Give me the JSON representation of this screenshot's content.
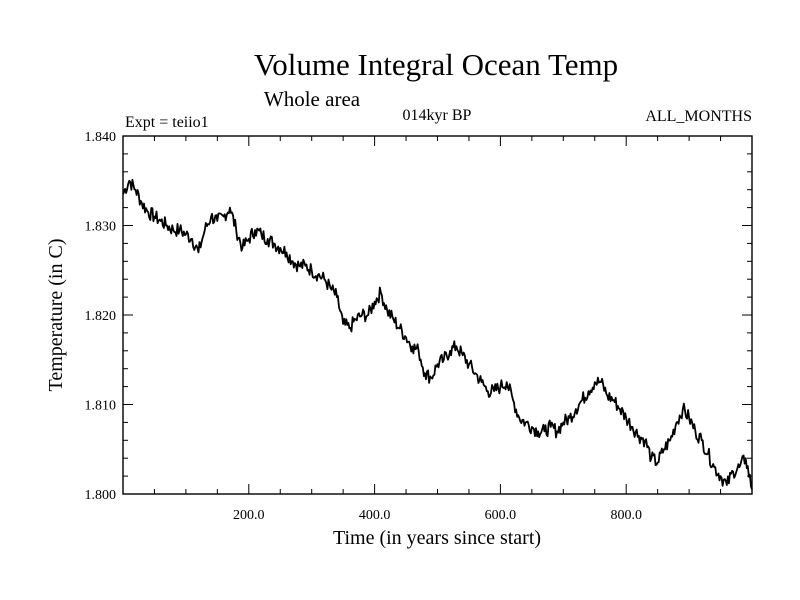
{
  "chart_data": {
    "type": "line",
    "title": "Volume Integral Ocean Temp",
    "subtitle": "Whole area",
    "annotations": {
      "left": "Expt = teiio1",
      "center": "014kyr BP",
      "right": "ALL_MONTHS"
    },
    "xlabel": "Time (in years since start)",
    "ylabel": "Temperature (in C)",
    "xlim": [
      0,
      1000
    ],
    "ylim": [
      1.8,
      1.84
    ],
    "x_ticks": [
      200,
      400,
      600,
      800
    ],
    "x_tick_labels": [
      "200.0",
      "400.0",
      "600.0",
      "800.0"
    ],
    "y_ticks": [
      1.8,
      1.81,
      1.82,
      1.83,
      1.84
    ],
    "y_tick_labels": [
      "1.800",
      "1.810",
      "1.820",
      "1.830",
      "1.840"
    ],
    "grid": false,
    "series": [
      {
        "color": "#000000",
        "x": [
          0,
          10,
          20,
          30,
          40,
          50,
          60,
          70,
          80,
          90,
          100,
          110,
          120,
          130,
          140,
          150,
          160,
          170,
          180,
          190,
          200,
          210,
          220,
          230,
          240,
          250,
          260,
          270,
          280,
          290,
          300,
          310,
          320,
          330,
          340,
          350,
          360,
          370,
          380,
          390,
          400,
          410,
          420,
          430,
          440,
          450,
          460,
          470,
          480,
          490,
          500,
          510,
          520,
          530,
          540,
          550,
          560,
          570,
          580,
          590,
          600,
          610,
          620,
          630,
          640,
          650,
          660,
          670,
          680,
          690,
          700,
          710,
          720,
          730,
          740,
          750,
          760,
          770,
          780,
          790,
          800,
          810,
          820,
          830,
          840,
          850,
          860,
          870,
          880,
          890,
          900,
          910,
          920,
          930,
          940,
          950,
          960,
          970,
          980,
          990,
          1000
        ],
        "values": [
          1.8335,
          1.835,
          1.834,
          1.8325,
          1.8315,
          1.831,
          1.8305,
          1.83,
          1.8295,
          1.8295,
          1.829,
          1.8285,
          1.827,
          1.8295,
          1.831,
          1.8305,
          1.831,
          1.832,
          1.8295,
          1.8275,
          1.8285,
          1.8295,
          1.829,
          1.8285,
          1.828,
          1.8275,
          1.827,
          1.826,
          1.8255,
          1.8255,
          1.825,
          1.8245,
          1.824,
          1.823,
          1.822,
          1.819,
          1.8185,
          1.8195,
          1.82,
          1.82,
          1.8215,
          1.8225,
          1.8205,
          1.8195,
          1.8185,
          1.8175,
          1.8165,
          1.816,
          1.8135,
          1.813,
          1.8145,
          1.815,
          1.816,
          1.8165,
          1.8155,
          1.8145,
          1.8135,
          1.8125,
          1.8115,
          1.8115,
          1.812,
          1.8125,
          1.8105,
          1.8085,
          1.808,
          1.8075,
          1.807,
          1.807,
          1.8075,
          1.807,
          1.808,
          1.8085,
          1.8095,
          1.8105,
          1.8115,
          1.8125,
          1.8125,
          1.811,
          1.8105,
          1.8095,
          1.8085,
          1.8075,
          1.8065,
          1.806,
          1.804,
          1.8035,
          1.805,
          1.806,
          1.808,
          1.8095,
          1.8085,
          1.807,
          1.806,
          1.8045,
          1.803,
          1.802,
          1.801,
          1.8025,
          1.803,
          1.804,
          1.8005
        ]
      }
    ]
  }
}
